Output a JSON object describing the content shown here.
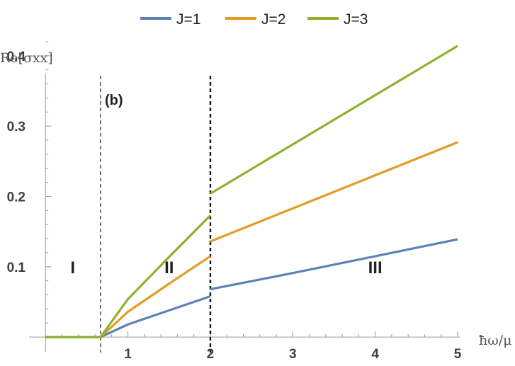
{
  "chart_data": {
    "type": "line",
    "x": [
      0,
      0.667,
      1,
      1.5,
      2,
      2.000001,
      3,
      4,
      5
    ],
    "series": [
      {
        "name": "J=1",
        "color": "#5E81B5",
        "values": [
          0,
          0,
          0.018,
          0.038,
          0.058,
          0.068,
          0.091,
          0.115,
          0.139
        ]
      },
      {
        "name": "J=2",
        "color": "#E19C24",
        "values": [
          0,
          0,
          0.036,
          0.076,
          0.115,
          0.136,
          0.183,
          0.23,
          0.277
        ]
      },
      {
        "name": "J=3",
        "color": "#8FB032",
        "values": [
          0,
          0,
          0.054,
          0.114,
          0.173,
          0.204,
          0.274,
          0.344,
          0.414
        ]
      }
    ],
    "xlim": [
      -0.2,
      5
    ],
    "ylim": [
      -0.02,
      0.43
    ],
    "xticks": [
      1,
      2,
      3,
      4,
      5
    ],
    "xtick_labels": [
      "1",
      "2",
      "3",
      "4",
      "5"
    ],
    "yticks": [
      0.1,
      0.2,
      0.3,
      0.4
    ],
    "ytick_labels": [
      "0.1",
      "0.2",
      "0.3",
      "0.4"
    ],
    "xlabel": "ħω/μ",
    "ylabel": "Re[σxx]",
    "panel_label": "(b)",
    "vlines": [
      {
        "x": 0.667,
        "style": "dashed-thin"
      },
      {
        "x": 2,
        "style": "dashed-thick"
      }
    ],
    "regions": [
      {
        "label": "I",
        "x": 0.33,
        "y": 0.1
      },
      {
        "label": "II",
        "x": 1.5,
        "y": 0.1
      },
      {
        "label": "III",
        "x": 4,
        "y": 0.1
      }
    ],
    "legend_position": "top-center",
    "grid": false
  }
}
